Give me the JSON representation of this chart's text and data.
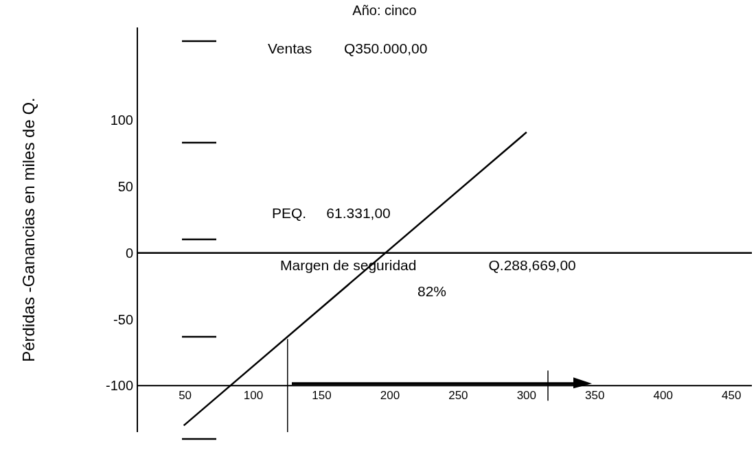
{
  "chart_data": {
    "type": "line",
    "title": "Año: cinco",
    "ylabel": "Pérdidas -Ganancias en miles de Q.",
    "x": [
      49,
      300
    ],
    "series": [
      {
        "color": "#000000",
        "values": [
          -130,
          91
        ]
      }
    ],
    "xlim": [
      15,
      465
    ],
    "ylim": [
      -135,
      170
    ],
    "xticks": [
      50,
      100,
      150,
      200,
      250,
      300,
      350,
      400,
      450
    ],
    "yticks": [
      -100,
      -50,
      0,
      50,
      100
    ],
    "ref_lines": [
      {
        "axis": "y",
        "value": 0,
        "color": "#000000"
      },
      {
        "axis": "x",
        "value": 125,
        "color": "#000000"
      }
    ],
    "annotations": [
      "Ventas        Q350.000,00",
      "PEQ.     61.331,00",
      "Margen de seguridad                  Q.288,669,00",
      "82%"
    ],
    "marker": "none",
    "line_style": "solid"
  }
}
